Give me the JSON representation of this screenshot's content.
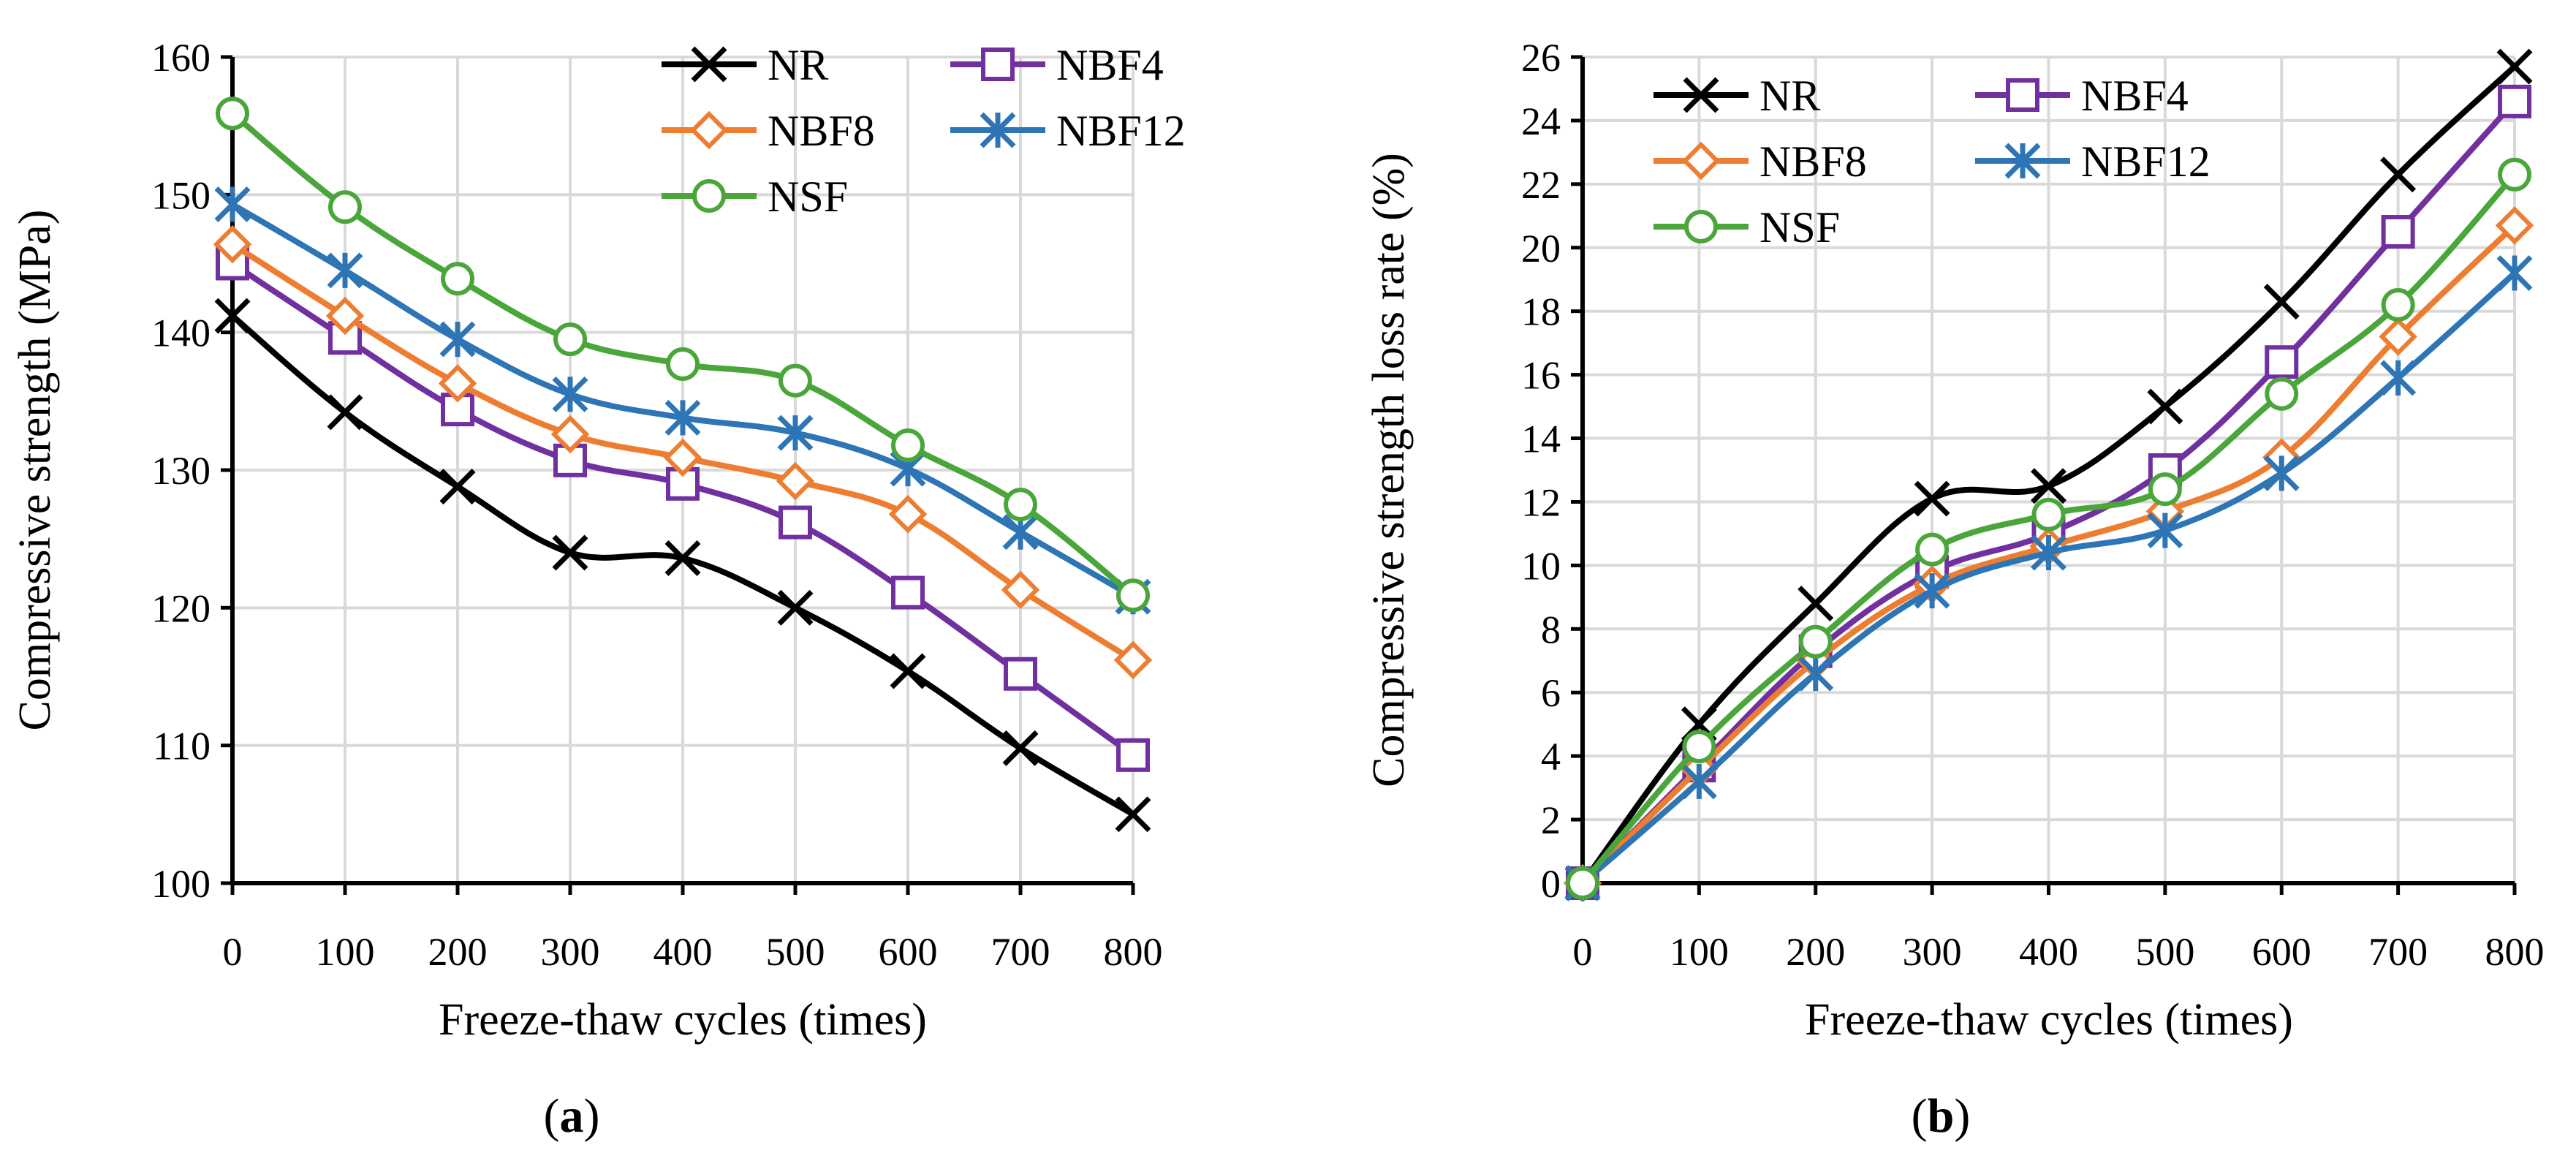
{
  "chart_data": [
    {
      "type": "line",
      "caption_letter": "a",
      "xlabel": "Freeze-thaw cycles (times)",
      "ylabel": "Compressive strength (MPa)",
      "xlim": [
        0,
        800
      ],
      "ylim": [
        100,
        160
      ],
      "xticks": [
        0,
        100,
        200,
        300,
        400,
        500,
        600,
        700,
        800
      ],
      "yticks": [
        100,
        110,
        120,
        130,
        140,
        150,
        160
      ],
      "grid": true,
      "legend_position": "top-right",
      "x": [
        0,
        100,
        200,
        300,
        400,
        500,
        600,
        700,
        800
      ],
      "series": [
        {
          "name": "NR",
          "color": "#000000",
          "marker": "x",
          "values": [
            141.2,
            134.2,
            128.8,
            124.0,
            123.6,
            120.0,
            115.4,
            109.8,
            105.0
          ]
        },
        {
          "name": "NBF4",
          "color": "#7030a0",
          "marker": "square",
          "values": [
            145.0,
            139.6,
            134.4,
            130.7,
            129.0,
            126.2,
            121.1,
            115.2,
            109.3
          ]
        },
        {
          "name": "NBF8",
          "color": "#ed7d31",
          "marker": "diamond",
          "values": [
            146.4,
            141.2,
            136.3,
            132.6,
            130.9,
            129.2,
            126.8,
            121.3,
            116.2
          ]
        },
        {
          "name": "NBF12",
          "color": "#2e75b6",
          "marker": "asterisk",
          "values": [
            149.3,
            144.5,
            139.5,
            135.5,
            133.8,
            132.7,
            130.1,
            125.5,
            120.8
          ]
        },
        {
          "name": "NSF",
          "color": "#4aa63a",
          "marker": "circle",
          "values": [
            155.9,
            149.1,
            143.9,
            139.5,
            137.7,
            136.5,
            131.8,
            127.5,
            120.9
          ]
        }
      ]
    },
    {
      "type": "line",
      "caption_letter": "b",
      "xlabel": "Freeze-thaw cycles (times)",
      "ylabel": "Compressive strength loss rate (%)",
      "xlim": [
        0,
        800
      ],
      "ylim": [
        0,
        26
      ],
      "xticks": [
        0,
        100,
        200,
        300,
        400,
        500,
        600,
        700,
        800
      ],
      "yticks": [
        0,
        2,
        4,
        6,
        8,
        10,
        12,
        14,
        16,
        18,
        20,
        22,
        24,
        26
      ],
      "grid": true,
      "legend_position": "top-left",
      "x": [
        0,
        100,
        200,
        300,
        400,
        500,
        600,
        700,
        800
      ],
      "series": [
        {
          "name": "NR",
          "color": "#000000",
          "marker": "x",
          "values": [
            0,
            5.0,
            8.8,
            12.1,
            12.5,
            15.0,
            18.3,
            22.3,
            25.7
          ]
        },
        {
          "name": "NBF4",
          "color": "#7030a0",
          "marker": "square",
          "values": [
            0,
            3.7,
            7.3,
            9.8,
            11.0,
            13.0,
            16.4,
            20.5,
            24.6
          ]
        },
        {
          "name": "NBF8",
          "color": "#ed7d31",
          "marker": "diamond",
          "values": [
            0,
            3.6,
            7.0,
            9.4,
            10.6,
            11.7,
            13.4,
            17.2,
            20.7
          ]
        },
        {
          "name": "NBF12",
          "color": "#2e75b6",
          "marker": "asterisk",
          "values": [
            0,
            3.2,
            6.6,
            9.2,
            10.4,
            11.1,
            12.9,
            15.9,
            19.2
          ]
        },
        {
          "name": "NSF",
          "color": "#4aa63a",
          "marker": "circle",
          "values": [
            0,
            4.3,
            7.6,
            10.5,
            11.6,
            12.4,
            15.4,
            18.2,
            22.3
          ]
        }
      ]
    }
  ]
}
